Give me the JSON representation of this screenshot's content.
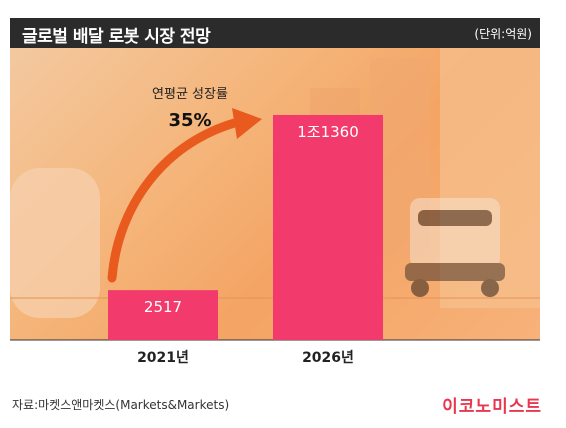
{
  "header": {
    "title": "글로벌 배달 로봇 시장 전망",
    "unit": "(단위:억원)"
  },
  "chart_data": {
    "type": "bar",
    "title": "글로벌 배달 로봇 시장 전망",
    "unit": "(단위:억원)",
    "categories": [
      "2021년",
      "2026년"
    ],
    "values": [
      2517,
      11360
    ],
    "value_labels": [
      "2517",
      "1조1360"
    ],
    "bar_color": "#f23b6c",
    "grid": false,
    "annotation": {
      "label": "연평균 성장률",
      "value": "35%",
      "arrow_color": "#e85a1e"
    }
  },
  "footer": {
    "source": "자료:마켓스앤마켓스(Markets&Markets)",
    "brand": "이코노미스트"
  },
  "colors": {
    "title_bar": "#2b2b2b",
    "bar": "#f23b6c",
    "arrow": "#e85a1e",
    "brand": "#e8374f",
    "background_photo": "#f4a464"
  }
}
